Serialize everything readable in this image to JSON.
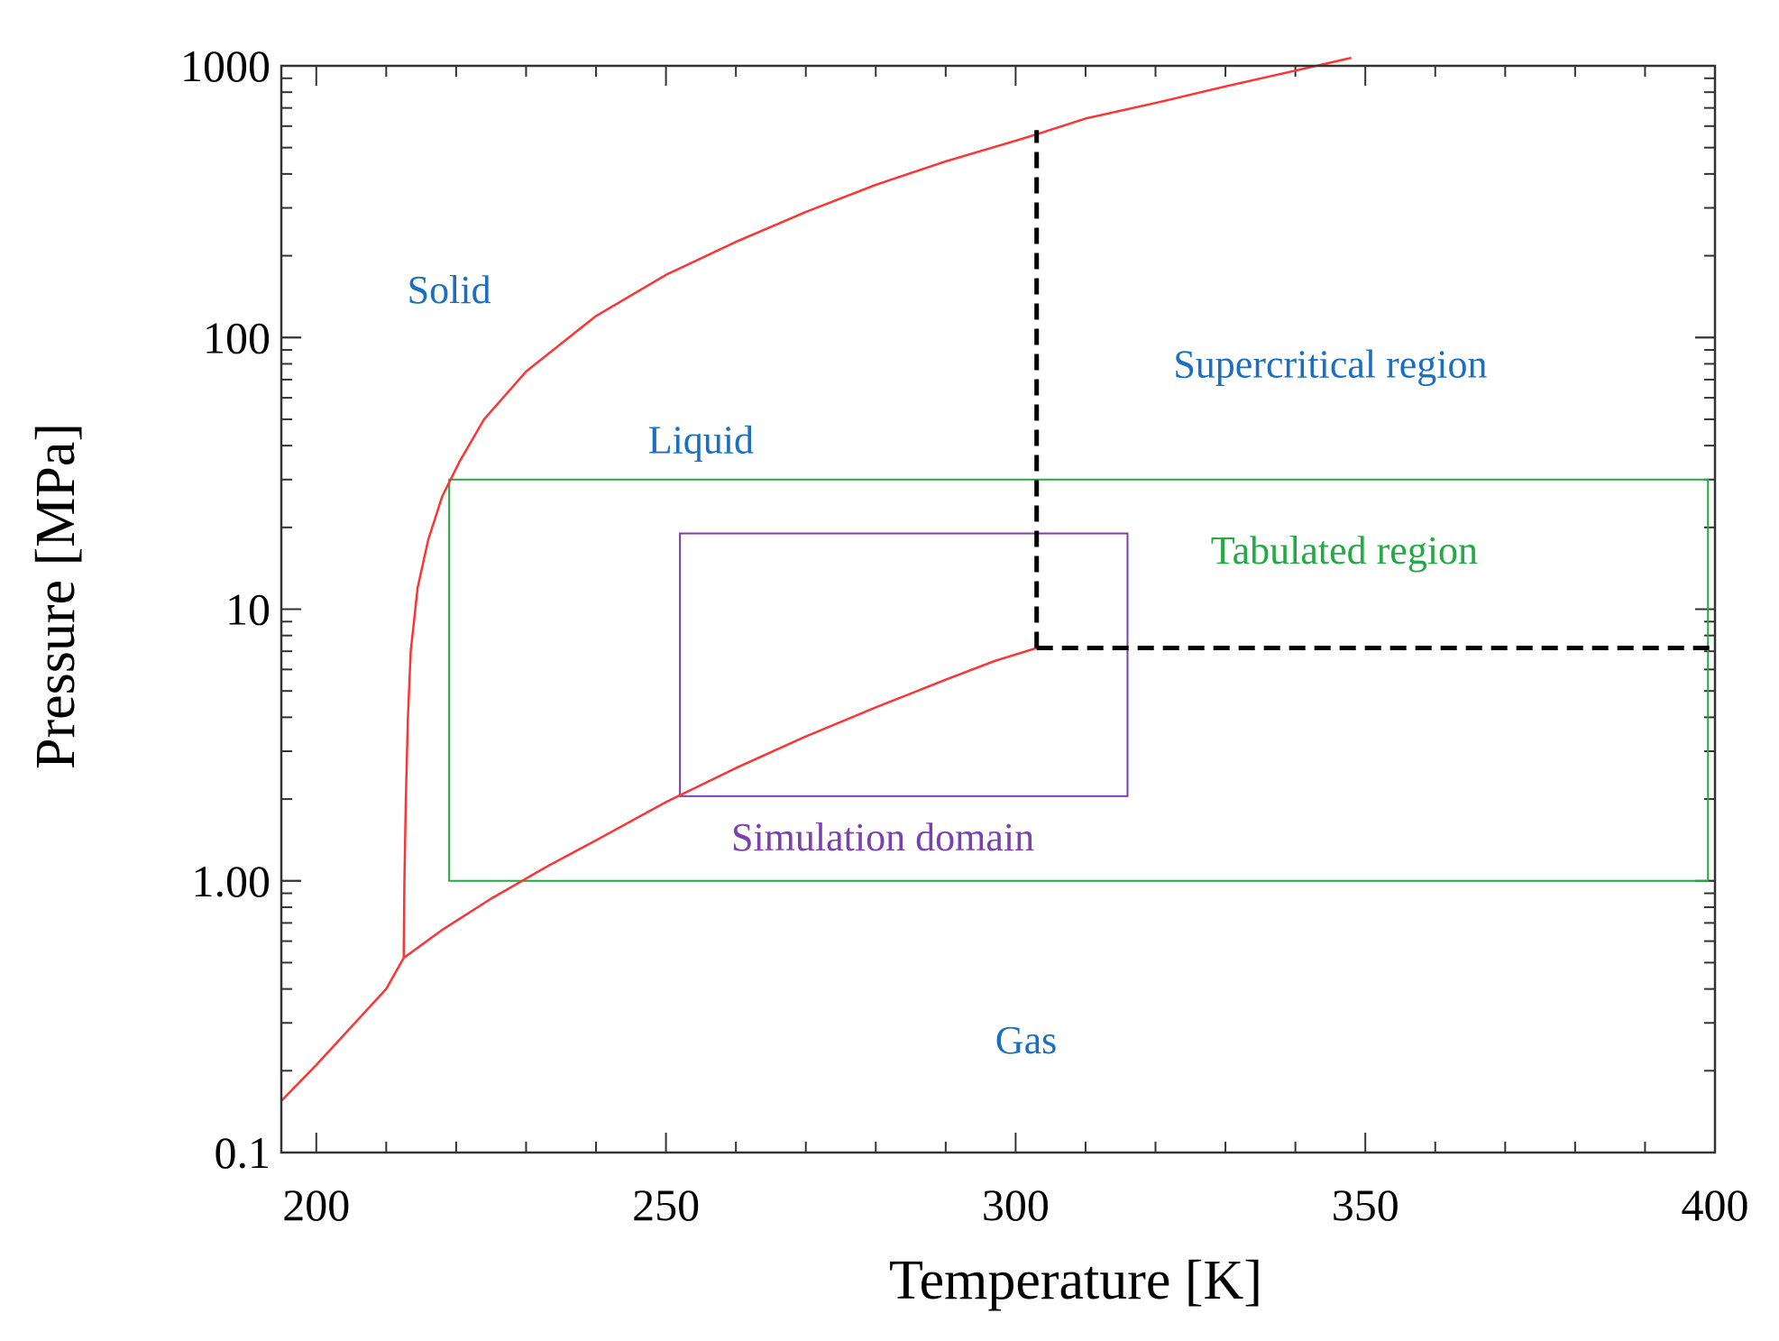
{
  "chart_data": {
    "type": "line",
    "title": "",
    "xlabel": "Temperature [K]",
    "ylabel": "Pressure [MPa]",
    "xscale": "linear",
    "yscale": "log",
    "xlim": [
      195,
      400
    ],
    "ylim": [
      0.1,
      1000
    ],
    "grid": false,
    "x_ticks": [
      {
        "value": 200,
        "label": "200"
      },
      {
        "value": 250,
        "label": "250"
      },
      {
        "value": 300,
        "label": "300"
      },
      {
        "value": 350,
        "label": "350"
      },
      {
        "value": 400,
        "label": "400"
      }
    ],
    "y_ticks": [
      {
        "value": 0.1,
        "label": "0.1"
      },
      {
        "value": 1,
        "label": "1.00"
      },
      {
        "value": 10,
        "label": "10"
      },
      {
        "value": 100,
        "label": "100"
      },
      {
        "value": 1000,
        "label": "1000"
      }
    ],
    "series": [
      {
        "name": "sublimation-curve",
        "color": "#ff3333",
        "style": "solid",
        "points": [
          [
            195,
            0.155
          ],
          [
            200,
            0.21
          ],
          [
            205,
            0.29
          ],
          [
            210,
            0.4
          ],
          [
            212.5,
            0.52
          ]
        ]
      },
      {
        "name": "melting-curve",
        "color": "#ff3333",
        "style": "solid",
        "points": [
          [
            212.5,
            0.52
          ],
          [
            212.6,
            1.0
          ],
          [
            212.8,
            2.0
          ],
          [
            213.1,
            4.0
          ],
          [
            213.5,
            7.0
          ],
          [
            214.5,
            12
          ],
          [
            216,
            18
          ],
          [
            218,
            26
          ],
          [
            220.5,
            35
          ],
          [
            224,
            50
          ],
          [
            230,
            75
          ],
          [
            240,
            120
          ],
          [
            250,
            170
          ],
          [
            260,
            225
          ],
          [
            270,
            290
          ],
          [
            280,
            365
          ],
          [
            290,
            445
          ],
          [
            300,
            530
          ],
          [
            303,
            560
          ],
          [
            310,
            640
          ],
          [
            320,
            730
          ],
          [
            330,
            840
          ],
          [
            340,
            960
          ],
          [
            348,
            1070
          ]
        ]
      },
      {
        "name": "vaporization-curve",
        "color": "#ff3333",
        "style": "solid",
        "points": [
          [
            212.5,
            0.52
          ],
          [
            218,
            0.66
          ],
          [
            225,
            0.86
          ],
          [
            233,
            1.13
          ],
          [
            240,
            1.41
          ],
          [
            250,
            1.95
          ],
          [
            260,
            2.6
          ],
          [
            270,
            3.4
          ],
          [
            280,
            4.35
          ],
          [
            290,
            5.5
          ],
          [
            297,
            6.45
          ],
          [
            303,
            7.2
          ]
        ]
      },
      {
        "name": "supercritical-boundary-vertical",
        "color": "#000000",
        "style": "dashed",
        "points": [
          [
            303,
            7.2
          ],
          [
            303,
            580
          ]
        ]
      },
      {
        "name": "supercritical-boundary-horizontal",
        "color": "#000000",
        "style": "dashed",
        "points": [
          [
            303,
            7.2
          ],
          [
            400,
            7.2
          ]
        ]
      }
    ],
    "rectangles": [
      {
        "name": "tabulated-region",
        "label": "Tabulated region",
        "color": "#22aa44",
        "x": [
          219,
          399
        ],
        "y": [
          1.0,
          30
        ]
      },
      {
        "name": "simulation-domain",
        "label": "Simulation domain",
        "color": "#7a3fb0",
        "x": [
          252,
          316
        ],
        "y": [
          2.05,
          19
        ]
      }
    ],
    "annotations": [
      {
        "name": "solid",
        "text": "Solid",
        "x": 219,
        "y": 150,
        "color": "#1a6fc0"
      },
      {
        "name": "liquid",
        "text": "Liquid",
        "x": 255,
        "y": 42,
        "color": "#1a6fc0"
      },
      {
        "name": "supercritical",
        "text": "Supercritical region",
        "x": 345,
        "y": 80,
        "color": "#1a6fc0"
      },
      {
        "name": "tabulated",
        "text": "Tabulated region",
        "x": 347,
        "y": 16.5,
        "color": "#22aa44"
      },
      {
        "name": "simulation",
        "text": "Simulation domain",
        "x": 281,
        "y": 1.45,
        "color": "#7a3fb0"
      },
      {
        "name": "gas",
        "text": "Gas",
        "x": 301.5,
        "y": 0.26,
        "color": "#1a6fc0"
      }
    ]
  }
}
